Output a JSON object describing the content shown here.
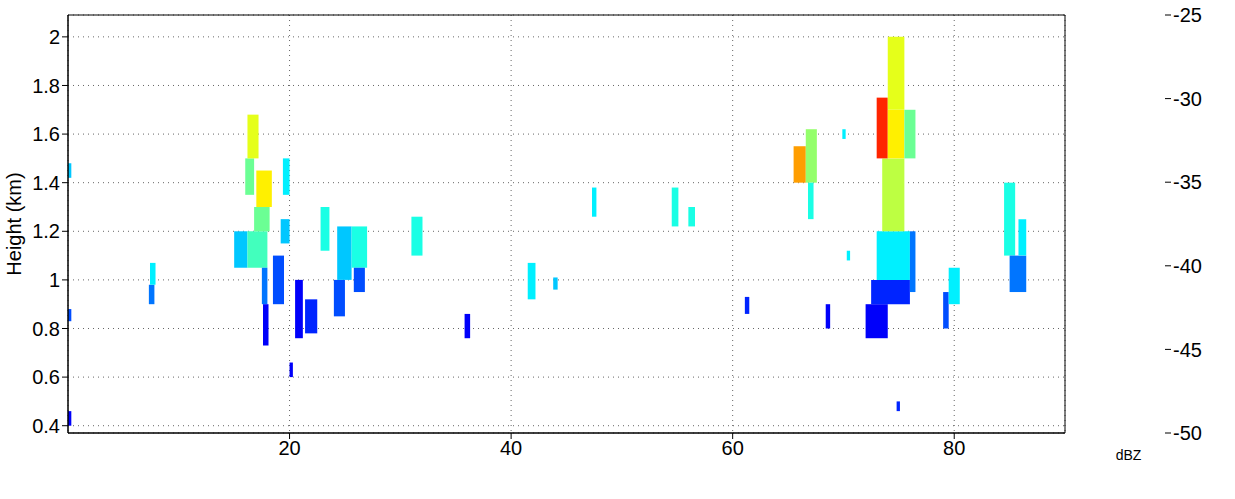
{
  "chart_data": {
    "type": "heatmap",
    "y_label": "Height (km)",
    "xlim": [
      0,
      90
    ],
    "xticks": [
      20,
      40,
      60,
      80
    ],
    "ylim": [
      0.37,
      2.09
    ],
    "yticks": [
      0.4,
      0.6,
      0.8,
      1,
      1.2,
      1.4,
      1.6,
      1.8,
      2
    ],
    "grid": true,
    "colorbar": {
      "label": "dBZ",
      "range": [
        -50,
        -25
      ],
      "ticks": [
        -25,
        -30,
        -35,
        -40,
        -45,
        -50
      ]
    },
    "cells": [
      {
        "x0": 0,
        "x1": 0.3,
        "y0": 0.4,
        "y1": 0.46,
        "value": -47
      },
      {
        "x0": 0,
        "x1": 0.3,
        "y0": 0.83,
        "y1": 0.88,
        "value": -45
      },
      {
        "x0": 0,
        "x1": 0.3,
        "y0": 1.42,
        "y1": 1.48,
        "value": -42
      },
      {
        "x0": 7.3,
        "x1": 7.8,
        "y0": 0.9,
        "y1": 0.98,
        "value": -44
      },
      {
        "x0": 7.4,
        "x1": 7.9,
        "y0": 0.98,
        "y1": 1.07,
        "value": -41
      },
      {
        "x0": 15.0,
        "x1": 16.2,
        "y0": 1.05,
        "y1": 1.2,
        "value": -42
      },
      {
        "x0": 16.2,
        "x1": 18.0,
        "y0": 1.05,
        "y1": 1.2,
        "value": -39
      },
      {
        "x0": 16.0,
        "x1": 16.8,
        "y0": 1.35,
        "y1": 1.5,
        "value": -38
      },
      {
        "x0": 16.2,
        "x1": 17.2,
        "y0": 1.5,
        "y1": 1.68,
        "value": -35
      },
      {
        "x0": 16.8,
        "x1": 18.2,
        "y0": 1.2,
        "y1": 1.3,
        "value": -38
      },
      {
        "x0": 17.0,
        "x1": 18.4,
        "y0": 1.3,
        "y1": 1.45,
        "value": -34
      },
      {
        "x0": 17.5,
        "x1": 18.0,
        "y0": 0.9,
        "y1": 1.05,
        "value": -44
      },
      {
        "x0": 17.6,
        "x1": 18.1,
        "y0": 0.73,
        "y1": 0.9,
        "value": -47
      },
      {
        "x0": 18.5,
        "x1": 19.5,
        "y0": 0.9,
        "y1": 1.1,
        "value": -45
      },
      {
        "x0": 19.2,
        "x1": 20.0,
        "y0": 1.15,
        "y1": 1.25,
        "value": -42
      },
      {
        "x0": 19.4,
        "x1": 20.0,
        "y0": 1.35,
        "y1": 1.5,
        "value": -41
      },
      {
        "x0": 20.0,
        "x1": 20.3,
        "y0": 0.6,
        "y1": 0.66,
        "value": -47
      },
      {
        "x0": 20.5,
        "x1": 21.2,
        "y0": 0.76,
        "y1": 1.0,
        "value": -47
      },
      {
        "x0": 21.4,
        "x1": 22.5,
        "y0": 0.78,
        "y1": 0.92,
        "value": -46
      },
      {
        "x0": 22.8,
        "x1": 23.6,
        "y0": 1.12,
        "y1": 1.3,
        "value": -40
      },
      {
        "x0": 24.0,
        "x1": 25.0,
        "y0": 0.85,
        "y1": 1.0,
        "value": -45
      },
      {
        "x0": 24.3,
        "x1": 25.6,
        "y0": 1.0,
        "y1": 1.22,
        "value": -42
      },
      {
        "x0": 25.6,
        "x1": 27.0,
        "y0": 1.05,
        "y1": 1.22,
        "value": -40
      },
      {
        "x0": 25.8,
        "x1": 26.8,
        "y0": 0.95,
        "y1": 1.05,
        "value": -45
      },
      {
        "x0": 31.0,
        "x1": 32.0,
        "y0": 1.1,
        "y1": 1.26,
        "value": -40
      },
      {
        "x0": 35.8,
        "x1": 36.3,
        "y0": 0.76,
        "y1": 0.86,
        "value": -47
      },
      {
        "x0": 41.5,
        "x1": 42.2,
        "y0": 0.92,
        "y1": 1.07,
        "value": -41
      },
      {
        "x0": 43.8,
        "x1": 44.2,
        "y0": 0.96,
        "y1": 1.01,
        "value": -42
      },
      {
        "x0": 47.3,
        "x1": 47.7,
        "y0": 1.26,
        "y1": 1.38,
        "value": -41
      },
      {
        "x0": 54.5,
        "x1": 55.1,
        "y0": 1.22,
        "y1": 1.38,
        "value": -40
      },
      {
        "x0": 56.0,
        "x1": 56.6,
        "y0": 1.22,
        "y1": 1.3,
        "value": -40
      },
      {
        "x0": 61.1,
        "x1": 61.5,
        "y0": 0.86,
        "y1": 0.93,
        "value": -46
      },
      {
        "x0": 65.5,
        "x1": 66.6,
        "y0": 1.4,
        "y1": 1.55,
        "value": -32
      },
      {
        "x0": 66.6,
        "x1": 67.6,
        "y0": 1.4,
        "y1": 1.62,
        "value": -37
      },
      {
        "x0": 66.8,
        "x1": 67.3,
        "y0": 1.25,
        "y1": 1.4,
        "value": -40
      },
      {
        "x0": 68.4,
        "x1": 68.8,
        "y0": 0.8,
        "y1": 0.9,
        "value": -47
      },
      {
        "x0": 69.9,
        "x1": 70.2,
        "y0": 1.58,
        "y1": 1.62,
        "value": -41
      },
      {
        "x0": 70.3,
        "x1": 70.6,
        "y0": 1.08,
        "y1": 1.12,
        "value": -41
      },
      {
        "x0": 72.0,
        "x1": 74.0,
        "y0": 0.76,
        "y1": 0.9,
        "value": -47
      },
      {
        "x0": 72.5,
        "x1": 76.0,
        "y0": 0.9,
        "y1": 1.0,
        "value": -46
      },
      {
        "x0": 73.0,
        "x1": 76.0,
        "y0": 1.0,
        "y1": 1.2,
        "value": -41
      },
      {
        "x0": 73.5,
        "x1": 75.5,
        "y0": 1.2,
        "y1": 1.5,
        "value": -36
      },
      {
        "x0": 73.0,
        "x1": 74.0,
        "y0": 1.5,
        "y1": 1.75,
        "value": -29
      },
      {
        "x0": 74.0,
        "x1": 75.5,
        "y0": 1.5,
        "y1": 1.7,
        "value": -34
      },
      {
        "x0": 74.0,
        "x1": 75.5,
        "y0": 1.7,
        "y1": 2.0,
        "value": -35
      },
      {
        "x0": 75.5,
        "x1": 76.5,
        "y0": 1.5,
        "y1": 1.7,
        "value": -38
      },
      {
        "x0": 76.0,
        "x1": 76.5,
        "y0": 0.95,
        "y1": 1.2,
        "value": -44
      },
      {
        "x0": 74.8,
        "x1": 75.1,
        "y0": 0.46,
        "y1": 0.5,
        "value": -46
      },
      {
        "x0": 79.0,
        "x1": 79.5,
        "y0": 0.8,
        "y1": 0.95,
        "value": -45
      },
      {
        "x0": 79.5,
        "x1": 80.5,
        "y0": 0.9,
        "y1": 1.05,
        "value": -41
      },
      {
        "x0": 84.5,
        "x1": 85.5,
        "y0": 1.1,
        "y1": 1.4,
        "value": -40
      },
      {
        "x0": 85.0,
        "x1": 86.5,
        "y0": 0.95,
        "y1": 1.1,
        "value": -44
      },
      {
        "x0": 85.8,
        "x1": 86.5,
        "y0": 1.1,
        "y1": 1.25,
        "value": -41
      }
    ]
  }
}
